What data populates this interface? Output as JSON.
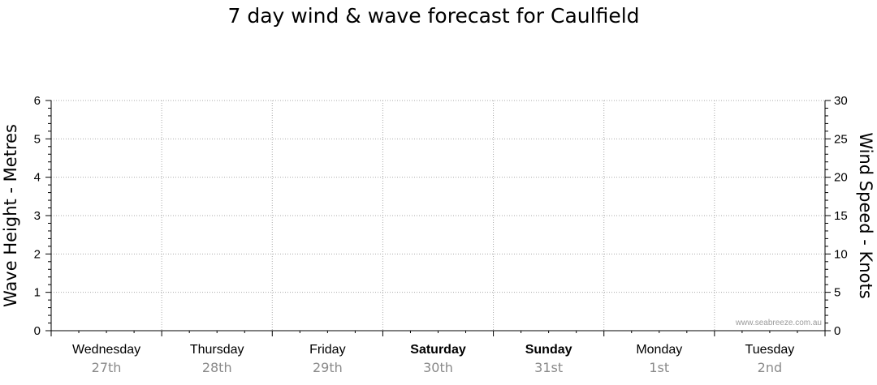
{
  "chart_data": {
    "type": "line",
    "title": "7 day wind & wave forecast for Caulfield",
    "ylabel": "Wave Height - Metres",
    "y2label": "Wind Speed - Knots",
    "ylim": [
      0,
      6
    ],
    "y2lim": [
      0,
      30
    ],
    "yticks": [
      "0",
      "1",
      "2",
      "3",
      "4",
      "5",
      "6"
    ],
    "y2ticks": [
      "0",
      "5",
      "10",
      "15",
      "20",
      "25",
      "30"
    ],
    "grid": true,
    "days": [
      {
        "name": "Wednesday",
        "date": "27th",
        "bold": false
      },
      {
        "name": "Thursday",
        "date": "28th",
        "bold": false
      },
      {
        "name": "Friday",
        "date": "29th",
        "bold": false
      },
      {
        "name": "Saturday",
        "date": "30th",
        "bold": true
      },
      {
        "name": "Sunday",
        "date": "31st",
        "bold": true
      },
      {
        "name": "Monday",
        "date": "1st",
        "bold": false
      },
      {
        "name": "Tuesday",
        "date": "2nd",
        "bold": false
      }
    ],
    "series": [],
    "watermark": "www.seabreeze.com.au"
  }
}
